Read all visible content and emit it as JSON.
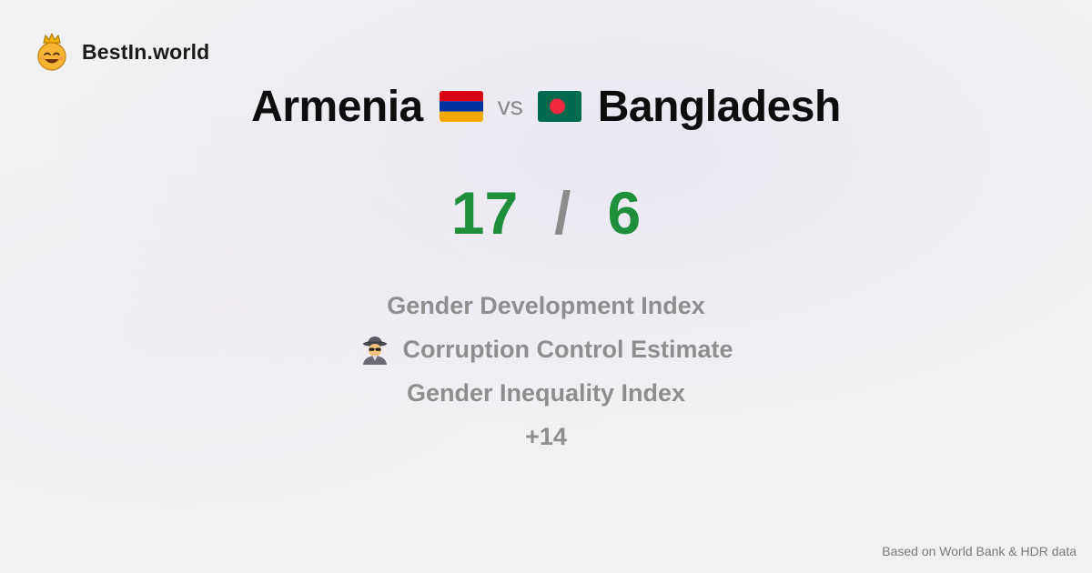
{
  "brand": {
    "name": "BestIn.world",
    "logo_icon": "crowned-smiley-icon"
  },
  "comparison": {
    "country_a": "Armenia",
    "country_a_flag": "armenia-flag-icon",
    "vs_label": "vs",
    "country_b": "Bangladesh",
    "country_b_flag": "bangladesh-flag-icon"
  },
  "score": {
    "a": "17",
    "separator": "/",
    "b": "6",
    "color": "#1f8f3c"
  },
  "metrics": [
    {
      "label": "Gender Development Index",
      "icon": ""
    },
    {
      "label": "Corruption Control Estimate",
      "icon": "detective-icon"
    },
    {
      "label": "Gender Inequality Index",
      "icon": ""
    },
    {
      "label": "+14",
      "icon": ""
    }
  ],
  "footer": {
    "source": "Based on World Bank & HDR data"
  }
}
